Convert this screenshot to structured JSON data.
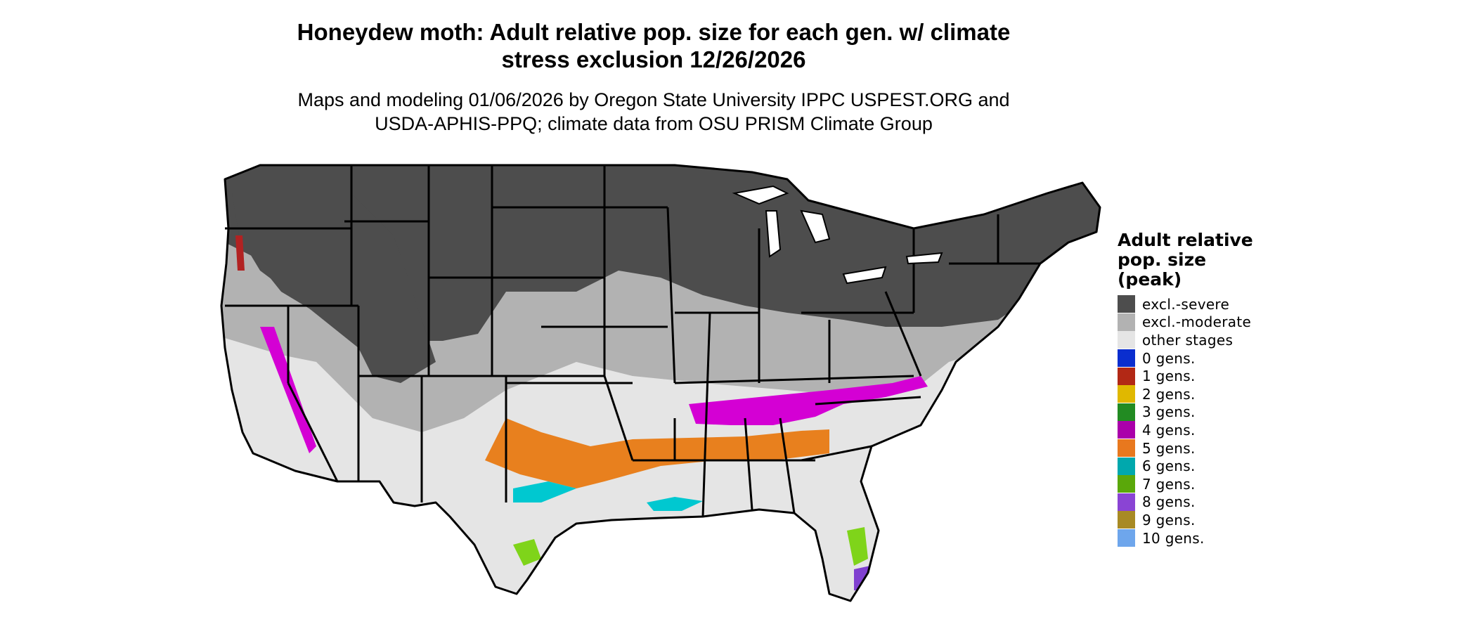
{
  "title": {
    "line1": "Honeydew moth: Adult relative pop. size for each gen. w/ climate",
    "line2": "stress exclusion 12/26/2026"
  },
  "subtitle": {
    "line1": "Maps and modeling 01/06/2026 by Oregon State University IPPC USPEST.ORG and",
    "line2": "USDA-APHIS-PPQ; climate data from OSU PRISM Climate Group"
  },
  "map": {
    "region": "Contiguous United States",
    "colors": {
      "excl_severe": "#4d4d4d",
      "excl_moderate": "#b2b2b2",
      "other_stages": "#e5e5e5",
      "gen4": "#d400d4",
      "gen5": "#e8801e",
      "gen6": "#00c8d0",
      "gen7": "#7fd41a",
      "gen8": "#8040d0",
      "gen1": "#b22222",
      "gen2": "#e0c800",
      "state_border": "#000000"
    }
  },
  "legend": {
    "title_line1": "Adult relative",
    "title_line2": "pop. size",
    "title_line3": "(peak)",
    "items": [
      {
        "label": "excl.-severe",
        "color": "#4d4d4d"
      },
      {
        "label": "excl.-moderate",
        "color": "#b2b2b2"
      },
      {
        "label": "other stages",
        "color": "#e5e5e5"
      },
      {
        "label": "0 gens.",
        "color": "#0a2ecf"
      },
      {
        "label": "1 gens.",
        "color": "#b22815"
      },
      {
        "label": "2 gens.",
        "color": "#e0b800"
      },
      {
        "label": "3 gens.",
        "color": "#228b22"
      },
      {
        "label": "4 gens.",
        "color": "#aa00aa"
      },
      {
        "label": "5 gens.",
        "color": "#e8781e"
      },
      {
        "label": "6 gens.",
        "color": "#00a8ad"
      },
      {
        "label": "7 gens.",
        "color": "#5aa80a"
      },
      {
        "label": "8 gens.",
        "color": "#8a44d4"
      },
      {
        "label": "9 gens.",
        "color": "#a88a24"
      },
      {
        "label": "10 gens.",
        "color": "#6ea6ec"
      }
    ]
  }
}
